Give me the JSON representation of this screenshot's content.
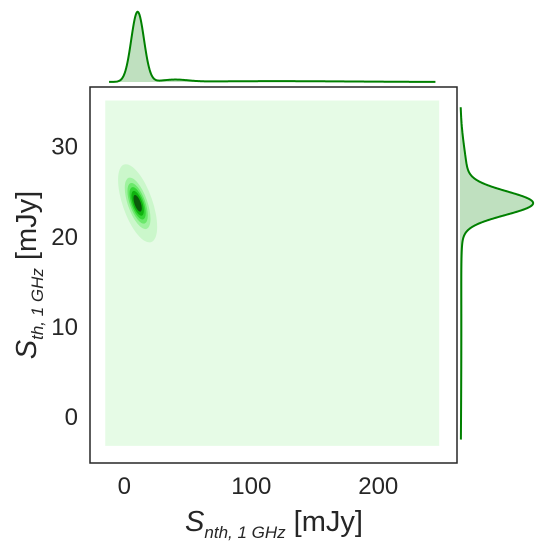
{
  "chart_data": {
    "type": "kde-jointplot",
    "xlabel": {
      "symbol": "S",
      "subscript": "nth, 1 GHz",
      "unit": "[mJy]"
    },
    "ylabel": {
      "symbol": "S",
      "subscript": "th, 1 GHz",
      "unit": "[mJy]"
    },
    "xlim": [
      -27,
      262
    ],
    "ylim": [
      -5.2,
      36.5
    ],
    "xticks": [
      0,
      100,
      200
    ],
    "yticks": [
      0,
      10,
      20,
      30
    ],
    "x_tick_labels": [
      "0",
      "100",
      "200"
    ],
    "y_tick_labels": [
      "0",
      "10",
      "20",
      "30"
    ],
    "grid": false,
    "joint_kde": {
      "x_extent": [
        -15,
        248
      ],
      "y_extent": [
        -3.3,
        35.0
      ],
      "peak": {
        "x": 10.5,
        "y": 23.6
      },
      "sigma_x": 5.5,
      "sigma_y": 1.55,
      "correlation": -0.6,
      "levels": 6,
      "colormap": [
        "#e6fbe6",
        "#cbf7cb",
        "#9ff29f",
        "#6be86b",
        "#36d636",
        "#0fb30f",
        "#0a5a0a"
      ]
    },
    "marginal_x": {
      "peak": 10.5,
      "sigma": 5.0,
      "secondary_bumps": [
        {
          "x": 40,
          "sigma": 10,
          "weight": 0.03
        }
      ]
    },
    "marginal_y": {
      "peak": 23.6,
      "sigma": 1.3,
      "shoulder": {
        "y": 26,
        "sigma": 3.5,
        "weight": 0.1
      }
    },
    "colors": {
      "line": "#008000",
      "fill": "#bfe0bf",
      "frame": "#262626"
    }
  }
}
